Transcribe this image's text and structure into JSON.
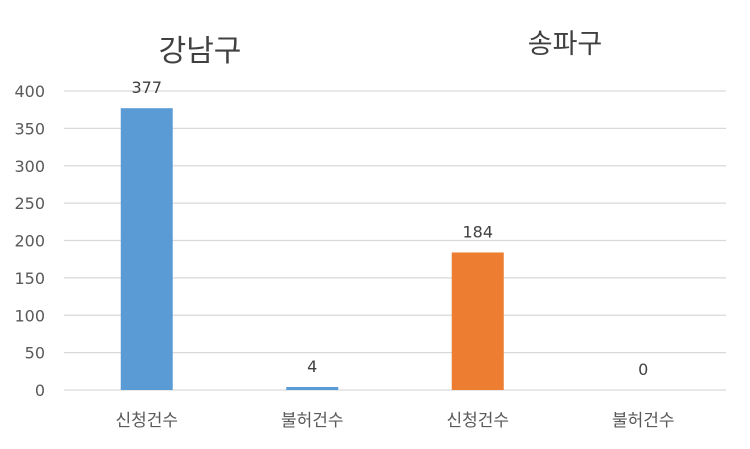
{
  "chart_data": {
    "type": "bar",
    "categories": [
      "신청건수",
      "불허건수",
      "신청건수",
      "불허건수"
    ],
    "values": [
      377,
      4,
      184,
      0
    ],
    "data_labels": [
      "377",
      "4",
      "184",
      "0"
    ],
    "bar_colors": [
      "#5B9BD5",
      "#5B9BD5",
      "#ED7D31",
      "#ED7D31"
    ],
    "groups": [
      {
        "label": "강남구",
        "category_indices": [
          0,
          1
        ]
      },
      {
        "label": "송파구",
        "category_indices": [
          2,
          3
        ]
      }
    ],
    "ylim": [
      0,
      400
    ],
    "yticks": [
      0,
      50,
      100,
      150,
      200,
      250,
      300,
      350,
      400
    ],
    "ytick_labels": [
      "0",
      "50",
      "100",
      "150",
      "200",
      "250",
      "300",
      "350",
      "400"
    ],
    "grid": true,
    "gridline_color": "#D9D9D9",
    "legend": "none",
    "title": "",
    "xlabel": "",
    "ylabel": ""
  }
}
